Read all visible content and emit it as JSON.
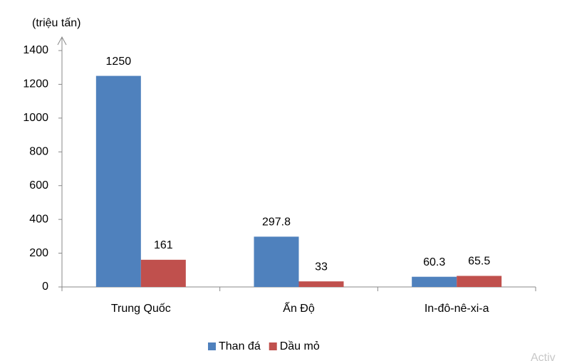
{
  "chart_data": {
    "type": "bar",
    "y_axis_label": "(triệu tấn)",
    "categories": [
      "Trung Quốc",
      "Ấn Độ",
      "In-đô-nê-xi-a"
    ],
    "series": [
      {
        "name": "Than đá",
        "color": "#4f81bd",
        "values": [
          1250,
          297.8,
          60.3
        ]
      },
      {
        "name": "Dầu mỏ",
        "color": "#c0504d",
        "values": [
          161,
          33,
          65.5
        ]
      }
    ],
    "ylim": [
      0,
      1400
    ],
    "yticks": [
      0,
      200,
      400,
      600,
      800,
      1000,
      1200,
      1400
    ],
    "data_labels": true,
    "legend": "bottom",
    "watermark": "Activ"
  }
}
